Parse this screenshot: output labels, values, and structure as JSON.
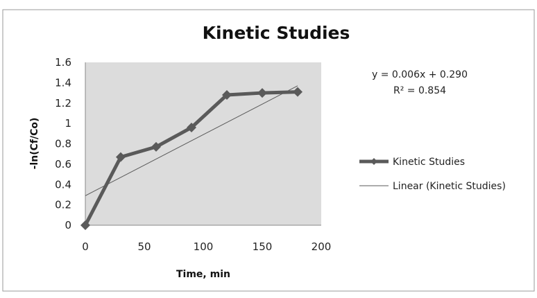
{
  "chart_data": {
    "type": "line",
    "title": "Kinetic Studies",
    "xlabel": "Time, min",
    "ylabel": "-ln(Cf/Co)",
    "xlim": [
      0,
      200
    ],
    "ylim": [
      0,
      1.6
    ],
    "xticks": [
      "0",
      "50",
      "100",
      "150",
      "200"
    ],
    "yticks": [
      "0",
      "0.2",
      "0.4",
      "0.6",
      "0.8",
      "1",
      "1.2",
      "1.4",
      "1.6"
    ],
    "xtick_values": [
      0,
      50,
      100,
      150,
      200
    ],
    "ytick_values": [
      0,
      0.2,
      0.4,
      0.6,
      0.8,
      1.0,
      1.2,
      1.4,
      1.6
    ],
    "series": [
      {
        "name": "Kinetic Studies",
        "x": [
          0,
          30,
          60,
          90,
          120,
          150,
          180
        ],
        "y": [
          0,
          0.67,
          0.77,
          0.96,
          1.28,
          1.3,
          1.31
        ],
        "color": "#5a5a5a",
        "marker": "diamond"
      }
    ],
    "trendline": {
      "name": "Linear (Kinetic Studies)",
      "slope": 0.006,
      "intercept": 0.29,
      "x_range": [
        0,
        180
      ],
      "color": "#5a5a5a"
    },
    "equation_label": "y = 0.006x + 0.290",
    "r2_label": "R² = 0.854",
    "plot_background": "#dcdcdc",
    "grid": false,
    "legend_position": "right"
  }
}
